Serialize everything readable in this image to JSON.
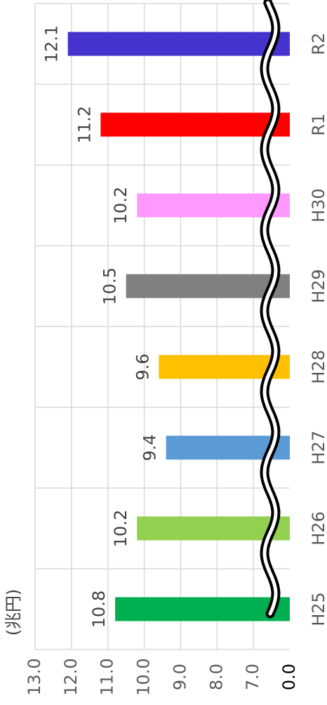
{
  "chart_data": {
    "type": "bar",
    "y_label": "(兆円)",
    "categories": [
      "H25",
      "H26",
      "H27",
      "H28",
      "H29",
      "H30",
      "R1",
      "R2"
    ],
    "values": [
      10.8,
      10.2,
      9.4,
      9.6,
      10.5,
      10.2,
      11.2,
      12.1
    ],
    "colors": [
      "#00b050",
      "#92d050",
      "#5b9bd5",
      "#ffc000",
      "#808080",
      "#ff99ff",
      "#ff0000",
      "#4433cc"
    ],
    "ylim": [
      0,
      13
    ],
    "yticks": [
      {
        "value": 0,
        "label": "0.0"
      },
      {
        "value": 7,
        "label": "7.0"
      },
      {
        "value": 8,
        "label": "8.0"
      },
      {
        "value": 9,
        "label": "9.0"
      },
      {
        "value": 10,
        "label": "10.0"
      },
      {
        "value": 11,
        "label": "11.0"
      },
      {
        "value": 12,
        "label": "12.0"
      },
      {
        "value": 13,
        "label": "13.0"
      }
    ],
    "axis_break": true,
    "grid": true
  }
}
